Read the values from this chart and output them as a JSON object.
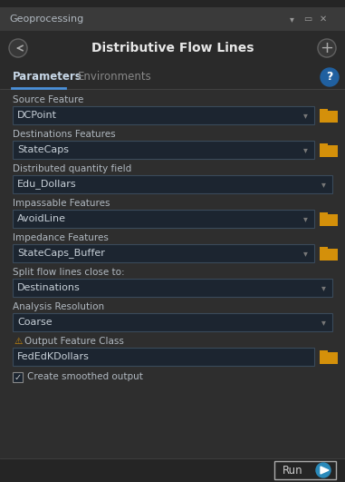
{
  "bg_color": "#2e2e2e",
  "title_bar_color": "#3a3a3a",
  "title_bar_text": "Geoprocessing",
  "title_bar_textcolor": "#b0b8c0",
  "main_title": "Distributive Flow Lines",
  "main_title_color": "#e8e8e8",
  "tab_active": "Parameters",
  "tab_inactive": "Environments",
  "tab_underline_color": "#4a90d9",
  "tab_active_color": "#c8d8e8",
  "tab_inactive_color": "#888888",
  "help_btn_color": "#2060a0",
  "field_bg": "#1c2530",
  "field_border": "#3a4a5a",
  "label_color": "#b0b8c0",
  "value_color": "#c8d0d8",
  "folder_icon_color": "#d4900a",
  "warning_color": "#d4900a",
  "fields": [
    {
      "label": "Source Feature",
      "value": "DCPoint",
      "has_folder": true,
      "has_dropdown": true,
      "has_warning": false
    },
    {
      "label": "Destinations Features",
      "value": "StateCaps",
      "has_folder": true,
      "has_dropdown": true,
      "has_warning": false
    },
    {
      "label": "Distributed quantity field",
      "value": "Edu_Dollars",
      "has_folder": false,
      "has_dropdown": true,
      "has_warning": false
    },
    {
      "label": "Impassable Features",
      "value": "AvoidLine",
      "has_folder": true,
      "has_dropdown": true,
      "has_warning": false
    },
    {
      "label": "Impedance Features",
      "value": "StateCaps_Buffer",
      "has_folder": true,
      "has_dropdown": true,
      "has_warning": false
    },
    {
      "label": "Split flow lines close to:",
      "value": "Destinations",
      "has_folder": false,
      "has_dropdown": true,
      "has_warning": false
    },
    {
      "label": "Analysis Resolution",
      "value": "Coarse",
      "has_folder": false,
      "has_dropdown": true,
      "has_warning": false
    },
    {
      "label": "Output Feature Class",
      "value": "FedEdKDollars",
      "has_folder": true,
      "has_dropdown": false,
      "has_warning": true
    }
  ],
  "checkbox_label": "Create smoothed output",
  "run_btn_text": "Run",
  "run_btn_border": "#aaaaaa",
  "run_btn_bg": "#252525",
  "play_icon_color": "#2a8aba"
}
